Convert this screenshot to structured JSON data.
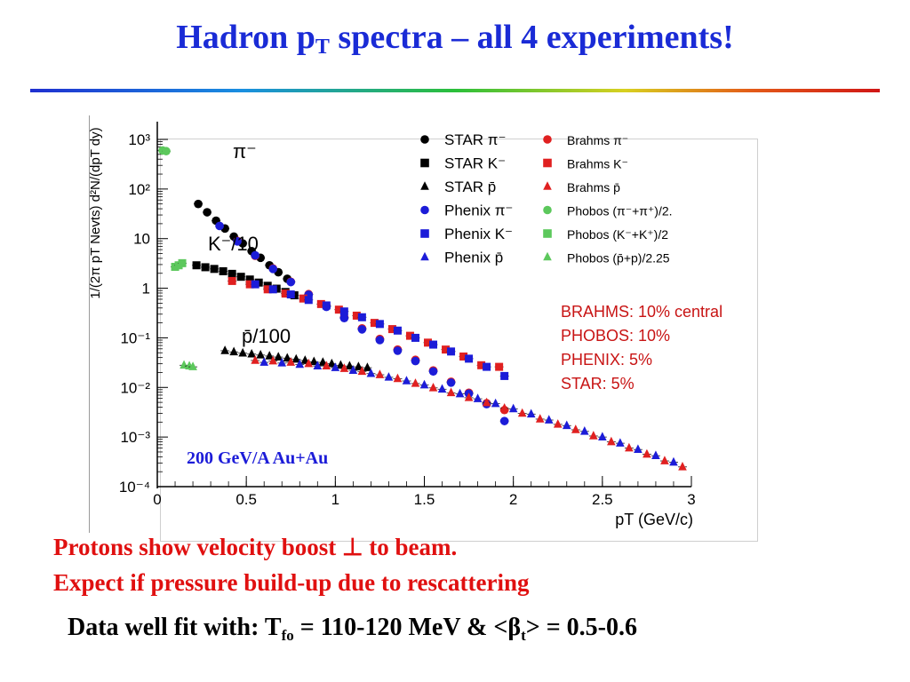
{
  "slide": {
    "title_main": "Hadron p",
    "title_sub": "T",
    "title_rest": " spectra – all 4 experiments!",
    "rule_colors": [
      "#1f2fd0",
      "#2bbf3a",
      "#d01616"
    ],
    "bottom_line1": "Protons show velocity boost ⊥ to beam.",
    "bottom_line2": "Expect if pressure build-up due to rescattering",
    "fit_prefix": "Data well fit with: T",
    "fit_sub1": "fo",
    "fit_mid": " = 110-120 MeV & <β",
    "fit_sub2": "t",
    "fit_suffix": "> = 0.5-0.6"
  },
  "chart_data": {
    "type": "scatter",
    "y_scale": "log",
    "xlabel": "pT (GeV/c)",
    "ylabel": "1/(2π pT Nevts) d²N/(dpT dy)",
    "xlim": [
      0,
      3
    ],
    "ylim": [
      0.0001,
      1000
    ],
    "x_ticks": [
      "0",
      "0.5",
      "1",
      "1.5",
      "2",
      "2.5",
      "3"
    ],
    "y_ticks": [
      "10³",
      "10²",
      "10",
      "1",
      "10⁻¹",
      "10⁻²",
      "10⁻³",
      "10⁻⁴"
    ],
    "curve_labels": [
      {
        "text": "π⁻",
        "series": "pi"
      },
      {
        "text": "K⁻/10",
        "series": "K"
      },
      {
        "text": "p̄/100",
        "series": "pbar"
      }
    ],
    "annotation": "200 GeV/A Au+Au",
    "centrality": [
      "BRAHMS: 10% central",
      "PHOBOS: 10%",
      "PHENIX: 5%",
      "STAR: 5%"
    ],
    "legend": [
      {
        "label": "STAR π⁻",
        "marker": "circle",
        "color": "#000000"
      },
      {
        "label": "Brahms π⁻",
        "marker": "circle",
        "color": "#e02020"
      },
      {
        "label": "STAR K⁻",
        "marker": "square",
        "color": "#000000"
      },
      {
        "label": "Brahms K⁻",
        "marker": "square",
        "color": "#e02020"
      },
      {
        "label": "STAR p̄",
        "marker": "triangle",
        "color": "#000000"
      },
      {
        "label": "Brahms p̄",
        "marker": "triangle",
        "color": "#e02020"
      },
      {
        "label": "Phenix π⁻",
        "marker": "circle",
        "color": "#1c1cd8"
      },
      {
        "label": "Phobos (π⁻+π⁺)/2.",
        "marker": "circle",
        "color": "#5cc85c"
      },
      {
        "label": "Phenix K⁻",
        "marker": "square",
        "color": "#1c1cd8"
      },
      {
        "label": "Phobos (K⁻+K⁺)/2",
        "marker": "square",
        "color": "#5cc85c"
      },
      {
        "label": "Phenix p̄",
        "marker": "triangle",
        "color": "#1c1cd8"
      },
      {
        "label": "Phobos (p̄+p)/2.25",
        "marker": "triangle",
        "color": "#5cc85c"
      }
    ],
    "series": [
      {
        "name": "STAR π⁻",
        "marker": "circle",
        "color": "#000000",
        "x": [
          0.23,
          0.28,
          0.33,
          0.38,
          0.43,
          0.48,
          0.53,
          0.58,
          0.63,
          0.68,
          0.73
        ],
        "y": [
          50,
          34,
          23,
          16,
          11,
          8.0,
          5.6,
          4.1,
          2.9,
          2.1,
          1.55
        ]
      },
      {
        "name": "Brahms π⁻",
        "marker": "circle",
        "color": "#e02020",
        "x": [
          0.45,
          0.55,
          0.65,
          0.75,
          0.85,
          0.95,
          1.05,
          1.15,
          1.25,
          1.35,
          1.45,
          1.55,
          1.65,
          1.75,
          1.85,
          1.95
        ],
        "y": [
          9.0,
          4.5,
          2.5,
          1.35,
          0.76,
          0.44,
          0.26,
          0.155,
          0.095,
          0.058,
          0.036,
          0.022,
          0.013,
          0.0078,
          0.0048,
          0.0035
        ]
      },
      {
        "name": "Phenix π⁻",
        "marker": "circle",
        "color": "#1c1cd8",
        "x": [
          0.35,
          0.45,
          0.55,
          0.65,
          0.75,
          0.85,
          0.95,
          1.05,
          1.15,
          1.25,
          1.35,
          1.45,
          1.55,
          1.65,
          1.75,
          1.85,
          1.95
        ],
        "y": [
          18,
          8.8,
          4.6,
          2.45,
          1.33,
          0.74,
          0.42,
          0.25,
          0.148,
          0.09,
          0.055,
          0.034,
          0.021,
          0.0125,
          0.0075,
          0.0046,
          0.0021
        ]
      },
      {
        "name": "Phobos (π⁻+π⁺)/2.",
        "marker": "circle",
        "color": "#5cc85c",
        "x": [
          0.03,
          0.05
        ],
        "y": [
          600,
          580
        ]
      },
      {
        "name": "STAR K⁻",
        "marker": "square",
        "color": "#000000",
        "x": [
          0.22,
          0.27,
          0.32,
          0.37,
          0.42,
          0.47,
          0.52,
          0.57,
          0.62,
          0.67,
          0.72,
          0.77
        ],
        "y": [
          2.9,
          2.65,
          2.45,
          2.2,
          1.95,
          1.7,
          1.5,
          1.3,
          1.12,
          0.98,
          0.84,
          0.72
        ]
      },
      {
        "name": "Brahms K⁻",
        "marker": "square",
        "color": "#e02020",
        "x": [
          0.42,
          0.52,
          0.62,
          0.72,
          0.82,
          0.92,
          1.02,
          1.12,
          1.22,
          1.32,
          1.42,
          1.52,
          1.62,
          1.72,
          1.82,
          1.92
        ],
        "y": [
          1.4,
          1.2,
          0.95,
          0.78,
          0.62,
          0.48,
          0.37,
          0.28,
          0.2,
          0.15,
          0.11,
          0.08,
          0.058,
          0.042,
          0.028,
          0.026
        ]
      },
      {
        "name": "Phenix K⁻",
        "marker": "square",
        "color": "#1c1cd8",
        "x": [
          0.55,
          0.65,
          0.75,
          0.85,
          0.95,
          1.05,
          1.15,
          1.25,
          1.35,
          1.45,
          1.55,
          1.65,
          1.75,
          1.85,
          1.95
        ],
        "y": [
          1.2,
          0.95,
          0.75,
          0.58,
          0.45,
          0.34,
          0.26,
          0.19,
          0.14,
          0.1,
          0.073,
          0.053,
          0.038,
          0.026,
          0.017
        ]
      },
      {
        "name": "Phobos (K⁻+K⁺)/2",
        "marker": "square",
        "color": "#5cc85c",
        "x": [
          0.1,
          0.12,
          0.14
        ],
        "y": [
          2.7,
          2.9,
          3.2
        ]
      },
      {
        "name": "STAR p̄",
        "marker": "triangle",
        "color": "#000000",
        "x": [
          0.38,
          0.43,
          0.48,
          0.53,
          0.58,
          0.63,
          0.68,
          0.73,
          0.78,
          0.83,
          0.88,
          0.93,
          0.98,
          1.03,
          1.08,
          1.13,
          1.18
        ],
        "y": [
          0.055,
          0.052,
          0.049,
          0.047,
          0.045,
          0.043,
          0.041,
          0.039,
          0.037,
          0.035,
          0.033,
          0.032,
          0.03,
          0.028,
          0.027,
          0.026,
          0.025
        ]
      },
      {
        "name": "Brahms p̄",
        "marker": "triangle",
        "color": "#e02020",
        "x": [
          0.55,
          0.65,
          0.75,
          0.85,
          0.95,
          1.05,
          1.15,
          1.25,
          1.35,
          1.45,
          1.55,
          1.65,
          1.75,
          1.85,
          1.95,
          2.05,
          2.15,
          2.25,
          2.35,
          2.45,
          2.55,
          2.65,
          2.75,
          2.85,
          2.95
        ],
        "y": [
          0.035,
          0.034,
          0.032,
          0.03,
          0.027,
          0.024,
          0.021,
          0.018,
          0.015,
          0.012,
          0.0098,
          0.0078,
          0.0062,
          0.0049,
          0.0038,
          0.003,
          0.0023,
          0.0018,
          0.0014,
          0.00105,
          0.0008,
          0.0006,
          0.00045,
          0.00033,
          0.00025
        ]
      },
      {
        "name": "Phenix p̄",
        "marker": "triangle",
        "color": "#1c1cd8",
        "x": [
          0.6,
          0.7,
          0.8,
          0.9,
          1.0,
          1.1,
          1.2,
          1.3,
          1.4,
          1.5,
          1.6,
          1.7,
          1.8,
          1.9,
          2.0,
          2.1,
          2.2,
          2.3,
          2.4,
          2.5,
          2.6,
          2.7,
          2.8,
          2.9
        ],
        "y": [
          0.032,
          0.031,
          0.029,
          0.027,
          0.025,
          0.022,
          0.019,
          0.016,
          0.0135,
          0.0112,
          0.0092,
          0.0074,
          0.0059,
          0.0047,
          0.0037,
          0.0029,
          0.0022,
          0.0017,
          0.0013,
          0.001,
          0.00075,
          0.00056,
          0.00042,
          0.00031
        ]
      },
      {
        "name": "Phobos (p̄+p)/2.25",
        "marker": "triangle",
        "color": "#5cc85c",
        "x": [
          0.15,
          0.18,
          0.2
        ],
        "y": [
          0.028,
          0.027,
          0.026
        ]
      }
    ]
  }
}
